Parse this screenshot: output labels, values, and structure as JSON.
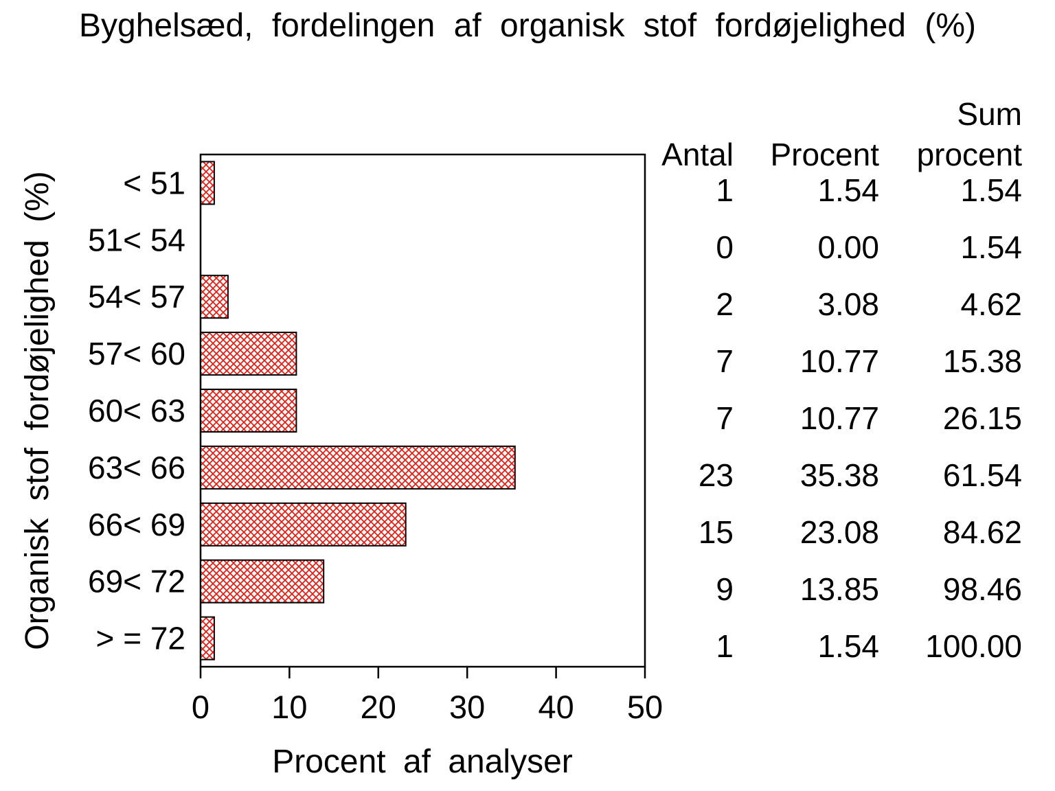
{
  "title": "Byghelsæd, fordelingen af organisk stof fordøjelighed (%)",
  "chart_data": {
    "type": "bar",
    "orientation": "horizontal",
    "title": "Byghelsæd, fordelingen af organisk stof fordøjelighed (%)",
    "categories": [
      "< 51",
      "51< 54",
      "54< 57",
      "57< 60",
      "60< 63",
      "63< 66",
      "66< 69",
      "69< 72",
      "> = 72"
    ],
    "values": [
      1.54,
      0.0,
      3.08,
      10.77,
      10.77,
      35.38,
      23.08,
      13.85,
      1.54
    ],
    "xlabel": "Procent af analyser",
    "ylabel": "Organisk stof fordøjelighed (%)",
    "xlim": [
      0,
      50
    ],
    "xticks": [
      "0",
      "10",
      "20",
      "30",
      "40",
      "50"
    ],
    "grid": false,
    "legend": "none",
    "bar_fill": "crosshatch",
    "bar_pattern_color": "#dd2018",
    "bar_border_color": "#000000"
  },
  "table": {
    "headers": {
      "antal": "Antal",
      "procent": "Procent",
      "sum_line1": "Sum",
      "sum_line2": "procent"
    },
    "rows": [
      {
        "antal": "1",
        "procent": "1.54",
        "sum": "1.54"
      },
      {
        "antal": "0",
        "procent": "0.00",
        "sum": "1.54"
      },
      {
        "antal": "2",
        "procent": "3.08",
        "sum": "4.62"
      },
      {
        "antal": "7",
        "procent": "10.77",
        "sum": "15.38"
      },
      {
        "antal": "7",
        "procent": "10.77",
        "sum": "26.15"
      },
      {
        "antal": "23",
        "procent": "35.38",
        "sum": "61.54"
      },
      {
        "antal": "15",
        "procent": "23.08",
        "sum": "84.62"
      },
      {
        "antal": "9",
        "procent": "13.85",
        "sum": "98.46"
      },
      {
        "antal": "1",
        "procent": "1.54",
        "sum": "100.00"
      }
    ]
  }
}
